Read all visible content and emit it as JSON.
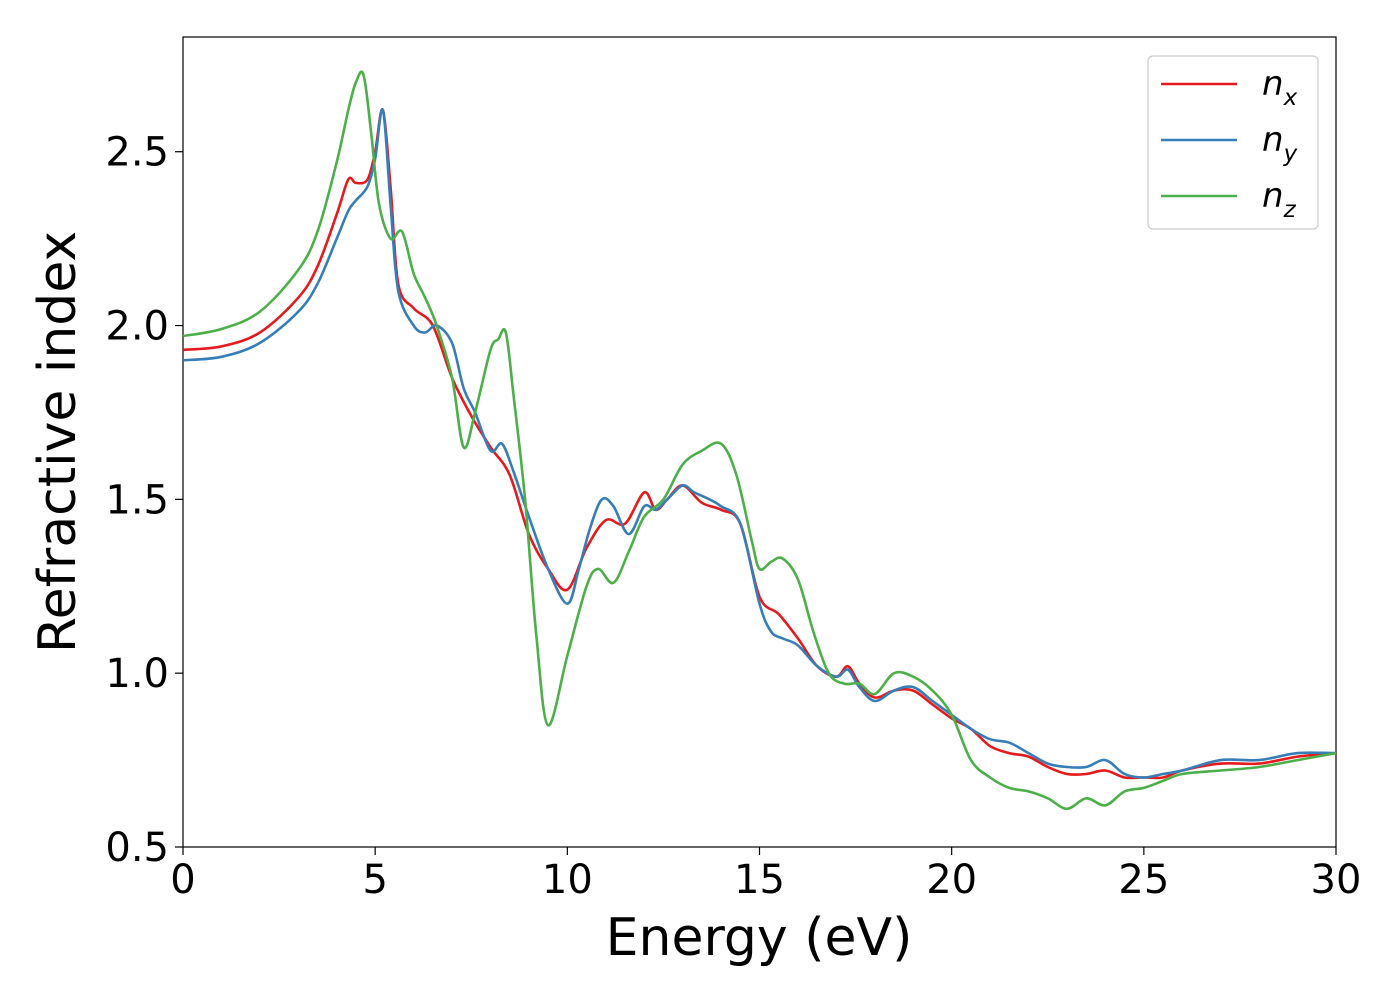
{
  "chart_data": {
    "type": "line",
    "title": "",
    "xlabel": "Energy (eV)",
    "ylabel": "Refractive index",
    "xlim": [
      0,
      30
    ],
    "ylim": [
      0.5,
      2.83
    ],
    "xticks": [
      0,
      5,
      10,
      15,
      20,
      25,
      30
    ],
    "yticks": [
      0.5,
      1.0,
      1.5,
      2.0,
      2.5
    ],
    "xtick_labels": [
      "0",
      "5",
      "10",
      "15",
      "20",
      "25",
      "30"
    ],
    "ytick_labels": [
      "0.5",
      "1.0",
      "1.5",
      "2.0",
      "2.5"
    ],
    "grid": false,
    "legend_position": "top-right",
    "series": [
      {
        "name": "n_x",
        "label_base": "n",
        "label_sub": "x",
        "color": "#e41a1c",
        "x": [
          0,
          1,
          2,
          3,
          3.5,
          4,
          4.3,
          4.5,
          4.8,
          5.0,
          5.2,
          5.4,
          5.6,
          6.0,
          6.5,
          7.0,
          7.5,
          8.0,
          8.5,
          9.0,
          9.5,
          10.0,
          10.5,
          11.0,
          11.5,
          12.0,
          12.3,
          12.6,
          13.0,
          13.5,
          14.0,
          14.5,
          15.0,
          15.5,
          16.0,
          16.5,
          17.0,
          17.3,
          17.6,
          18.0,
          18.5,
          19.0,
          19.5,
          20.0,
          20.5,
          21.0,
          21.5,
          22.0,
          22.5,
          23.0,
          23.5,
          24.0,
          24.5,
          25.0,
          25.5,
          26.0,
          27.0,
          28.0,
          29.0,
          30.0
        ],
        "y": [
          1.93,
          1.94,
          1.98,
          2.08,
          2.17,
          2.32,
          2.42,
          2.41,
          2.42,
          2.5,
          2.62,
          2.4,
          2.12,
          2.05,
          2.0,
          1.85,
          1.74,
          1.65,
          1.57,
          1.4,
          1.3,
          1.24,
          1.36,
          1.44,
          1.43,
          1.52,
          1.47,
          1.5,
          1.54,
          1.49,
          1.47,
          1.43,
          1.22,
          1.17,
          1.1,
          1.02,
          0.99,
          1.02,
          0.97,
          0.93,
          0.95,
          0.95,
          0.91,
          0.87,
          0.84,
          0.79,
          0.77,
          0.76,
          0.73,
          0.71,
          0.71,
          0.72,
          0.7,
          0.7,
          0.7,
          0.72,
          0.74,
          0.74,
          0.76,
          0.77
        ]
      },
      {
        "name": "n_y",
        "label_base": "n",
        "label_sub": "y",
        "color": "#377eb8",
        "x": [
          0,
          1,
          2,
          3,
          3.5,
          4,
          4.3,
          4.5,
          4.8,
          5.0,
          5.2,
          5.4,
          5.6,
          6.0,
          6.3,
          6.6,
          7.0,
          7.3,
          7.6,
          8.0,
          8.3,
          8.6,
          9.0,
          9.5,
          10.0,
          10.3,
          10.6,
          10.9,
          11.2,
          11.6,
          12.0,
          12.3,
          12.6,
          13.0,
          13.3,
          13.7,
          14.0,
          14.5,
          15.0,
          15.3,
          15.6,
          16.0,
          16.5,
          17.0,
          17.3,
          17.6,
          18.0,
          18.5,
          19.0,
          19.5,
          20.0,
          20.5,
          21.0,
          21.5,
          22.0,
          22.5,
          23.0,
          23.5,
          24.0,
          24.5,
          25.0,
          25.5,
          26.0,
          27.0,
          28.0,
          29.0,
          30.0
        ],
        "y": [
          1.9,
          1.91,
          1.95,
          2.04,
          2.12,
          2.25,
          2.33,
          2.36,
          2.4,
          2.48,
          2.62,
          2.35,
          2.1,
          2.0,
          1.98,
          2.0,
          1.95,
          1.82,
          1.75,
          1.64,
          1.66,
          1.58,
          1.45,
          1.3,
          1.2,
          1.3,
          1.42,
          1.5,
          1.48,
          1.4,
          1.48,
          1.47,
          1.5,
          1.54,
          1.52,
          1.5,
          1.48,
          1.43,
          1.2,
          1.12,
          1.1,
          1.08,
          1.02,
          0.99,
          1.01,
          0.96,
          0.92,
          0.95,
          0.96,
          0.92,
          0.88,
          0.84,
          0.81,
          0.8,
          0.77,
          0.74,
          0.73,
          0.73,
          0.75,
          0.71,
          0.7,
          0.71,
          0.72,
          0.75,
          0.75,
          0.77,
          0.77
        ]
      },
      {
        "name": "n_z",
        "label_base": "n",
        "label_sub": "z",
        "color": "#4daf4a",
        "x": [
          0,
          1,
          2,
          3,
          3.5,
          4,
          4.3,
          4.5,
          4.7,
          4.9,
          5.1,
          5.4,
          5.7,
          6.0,
          6.3,
          6.6,
          7.0,
          7.3,
          7.6,
          8.0,
          8.2,
          8.4,
          8.6,
          8.9,
          9.2,
          9.5,
          10.0,
          10.5,
          10.8,
          11.2,
          11.6,
          12.0,
          12.5,
          13.0,
          13.5,
          14.0,
          14.4,
          14.8,
          15.0,
          15.3,
          15.6,
          16.0,
          16.4,
          16.8,
          17.2,
          17.6,
          18.0,
          18.5,
          19.0,
          19.5,
          20.0,
          20.5,
          21.0,
          21.5,
          22.0,
          22.5,
          23.0,
          23.5,
          24.0,
          24.5,
          25.0,
          25.5,
          26.0,
          27.0,
          28.0,
          29.0,
          30.0
        ],
        "y": [
          1.97,
          1.99,
          2.04,
          2.16,
          2.27,
          2.47,
          2.62,
          2.7,
          2.72,
          2.55,
          2.35,
          2.25,
          2.27,
          2.15,
          2.08,
          2.0,
          1.85,
          1.65,
          1.75,
          1.93,
          1.96,
          1.98,
          1.8,
          1.5,
          1.1,
          0.85,
          1.05,
          1.25,
          1.3,
          1.26,
          1.35,
          1.45,
          1.5,
          1.6,
          1.64,
          1.66,
          1.57,
          1.38,
          1.3,
          1.32,
          1.33,
          1.27,
          1.12,
          1.0,
          0.97,
          0.97,
          0.94,
          1.0,
          0.99,
          0.95,
          0.88,
          0.75,
          0.7,
          0.67,
          0.66,
          0.64,
          0.61,
          0.64,
          0.62,
          0.66,
          0.67,
          0.69,
          0.71,
          0.72,
          0.73,
          0.75,
          0.77
        ]
      }
    ]
  }
}
